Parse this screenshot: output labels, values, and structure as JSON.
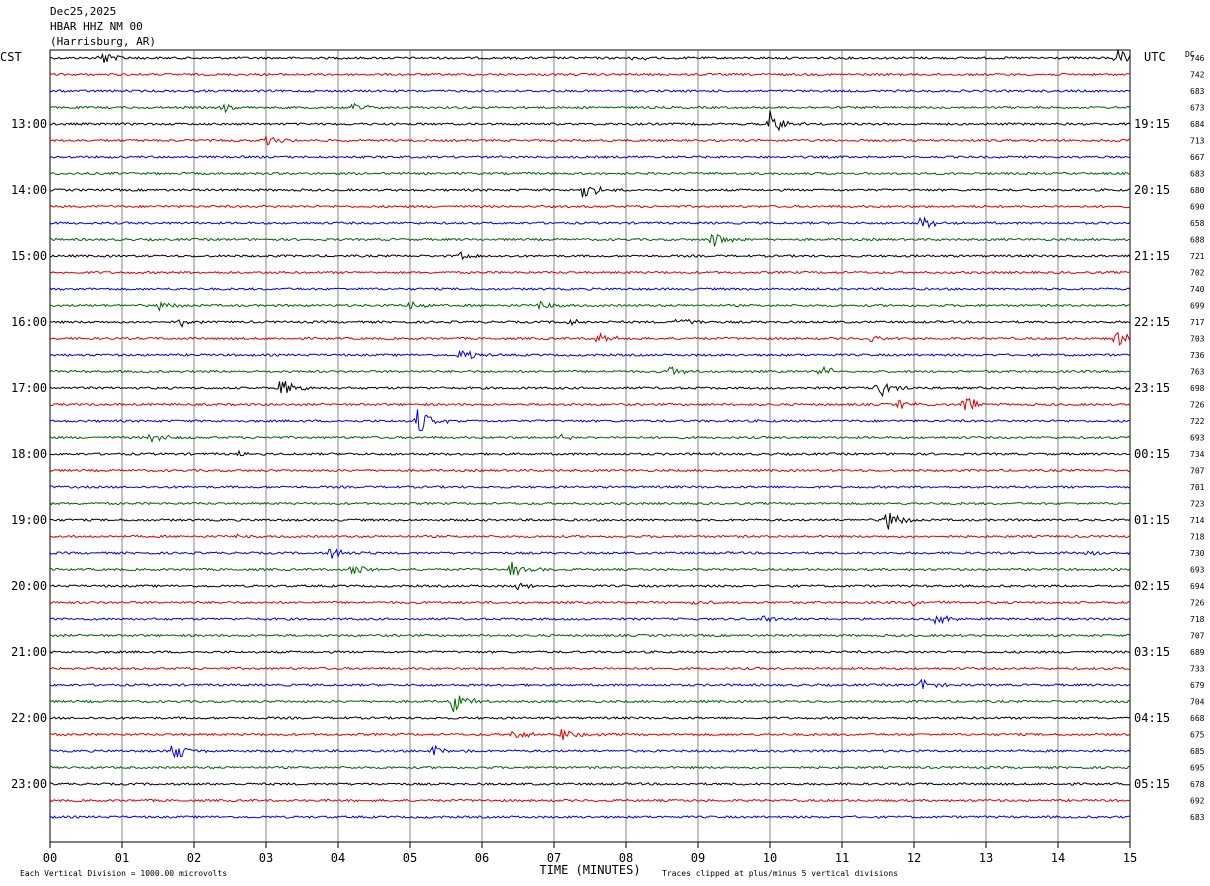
{
  "header": {
    "date": "Dec25,2025",
    "station": "HBAR HHZ NM 00",
    "location": "(Harrisburg, AR)"
  },
  "chart_data": {
    "type": "line",
    "left_axis_label": "CST",
    "right_axis_label": "UTC",
    "dc_label": "DC",
    "xlabel": "TIME (MINUTES)",
    "xlim": [
      0,
      15
    ],
    "x_tick_labels": [
      "00",
      "01",
      "02",
      "03",
      "04",
      "05",
      "06",
      "07",
      "08",
      "09",
      "10",
      "11",
      "12",
      "13",
      "14",
      "15"
    ],
    "left_time_labels": [
      "13:00",
      "14:00",
      "15:00",
      "16:00",
      "17:00",
      "18:00",
      "19:00",
      "20:00",
      "21:00",
      "22:00",
      "23:00"
    ],
    "right_time_labels": [
      "19:15",
      "20:15",
      "21:15",
      "22:15",
      "23:15",
      "00:15",
      "01:15",
      "02:15",
      "03:15",
      "04:15",
      "05:15"
    ],
    "trace_colors": [
      "#000000",
      "#dd0000",
      "#0000dd",
      "#006600"
    ],
    "dc_offsets": [
      746,
      742,
      683,
      673,
      684,
      713,
      667,
      683,
      680,
      690,
      658,
      688,
      721,
      702,
      740,
      699,
      717,
      703,
      736,
      763,
      698,
      726,
      722,
      693,
      734,
      707,
      701,
      723,
      714,
      718,
      730,
      693,
      694,
      726,
      718,
      707,
      689,
      733,
      679,
      704,
      668,
      675,
      685,
      695,
      678,
      692,
      683
    ],
    "events": [
      {
        "trace": 0,
        "minute": 0.7,
        "amp": 9
      },
      {
        "trace": 0,
        "minute": 8.1,
        "amp": 3
      },
      {
        "trace": 0,
        "minute": 14.8,
        "amp": 9
      },
      {
        "trace": 3,
        "minute": 2.4,
        "amp": 5
      },
      {
        "trace": 3,
        "minute": 4.2,
        "amp": 6
      },
      {
        "trace": 4,
        "minute": 10.0,
        "amp": 14
      },
      {
        "trace": 5,
        "minute": 3.0,
        "amp": 5
      },
      {
        "trace": 8,
        "minute": 7.4,
        "amp": 11
      },
      {
        "trace": 10,
        "minute": 12.1,
        "amp": 8
      },
      {
        "trace": 11,
        "minute": 9.2,
        "amp": 9
      },
      {
        "trace": 12,
        "minute": 5.7,
        "amp": 4
      },
      {
        "trace": 15,
        "minute": 1.5,
        "amp": 5
      },
      {
        "trace": 15,
        "minute": 5.0,
        "amp": 6
      },
      {
        "trace": 15,
        "minute": 6.8,
        "amp": 6
      },
      {
        "trace": 16,
        "minute": 1.8,
        "amp": 5
      },
      {
        "trace": 16,
        "minute": 7.2,
        "amp": 5
      },
      {
        "trace": 16,
        "minute": 8.7,
        "amp": 7
      },
      {
        "trace": 17,
        "minute": 7.6,
        "amp": 6
      },
      {
        "trace": 17,
        "minute": 11.4,
        "amp": 4
      },
      {
        "trace": 17,
        "minute": 14.8,
        "amp": 8
      },
      {
        "trace": 18,
        "minute": 5.7,
        "amp": 7
      },
      {
        "trace": 19,
        "minute": 8.6,
        "amp": 6
      },
      {
        "trace": 19,
        "minute": 10.7,
        "amp": 8
      },
      {
        "trace": 20,
        "minute": 3.2,
        "amp": 10
      },
      {
        "trace": 20,
        "minute": 11.5,
        "amp": 11
      },
      {
        "trace": 21,
        "minute": 11.8,
        "amp": 5
      },
      {
        "trace": 21,
        "minute": 12.7,
        "amp": 10
      },
      {
        "trace": 22,
        "minute": 5.1,
        "amp": 14
      },
      {
        "trace": 22,
        "minute": 15.0,
        "amp": 6
      },
      {
        "trace": 23,
        "minute": 1.4,
        "amp": 6
      },
      {
        "trace": 23,
        "minute": 7.1,
        "amp": 4
      },
      {
        "trace": 24,
        "minute": 2.6,
        "amp": 3
      },
      {
        "trace": 28,
        "minute": 11.6,
        "amp": 13
      },
      {
        "trace": 29,
        "minute": 2.6,
        "amp": 3
      },
      {
        "trace": 30,
        "minute": 3.9,
        "amp": 8
      },
      {
        "trace": 30,
        "minute": 14.4,
        "amp": 4
      },
      {
        "trace": 31,
        "minute": 4.2,
        "amp": 7
      },
      {
        "trace": 31,
        "minute": 6.4,
        "amp": 9
      },
      {
        "trace": 32,
        "minute": 6.5,
        "amp": 5
      },
      {
        "trace": 33,
        "minute": 8.9,
        "amp": 4
      },
      {
        "trace": 33,
        "minute": 12.0,
        "amp": 4
      },
      {
        "trace": 34,
        "minute": 9.9,
        "amp": 5
      },
      {
        "trace": 34,
        "minute": 12.3,
        "amp": 6
      },
      {
        "trace": 38,
        "minute": 12.1,
        "amp": 6
      },
      {
        "trace": 39,
        "minute": 5.6,
        "amp": 12
      },
      {
        "trace": 41,
        "minute": 6.4,
        "amp": 7
      },
      {
        "trace": 41,
        "minute": 7.1,
        "amp": 7
      },
      {
        "trace": 42,
        "minute": 1.7,
        "amp": 11
      },
      {
        "trace": 42,
        "minute": 5.3,
        "amp": 7
      }
    ],
    "footer_scale": "Each Vertical Division = 1000.00 microvolts",
    "footer_clip": "Traces clipped at plus/minus 5 vertical divisions"
  }
}
